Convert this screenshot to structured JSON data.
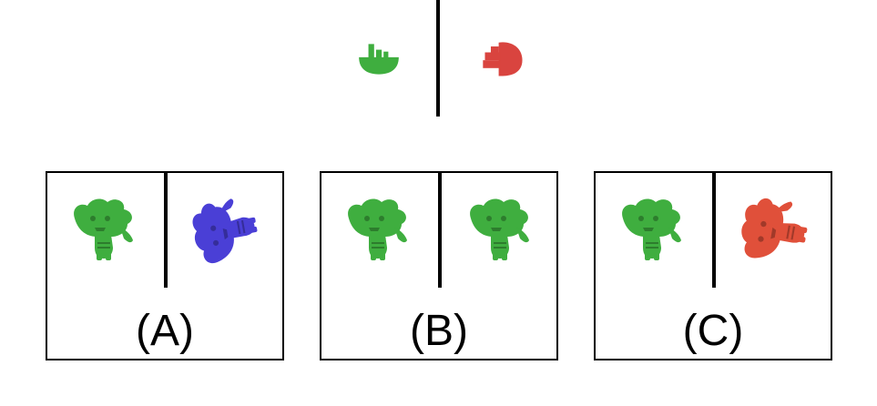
{
  "prompt": {
    "left_object_color": "#3fae3f",
    "right_object_color": "#d9443f"
  },
  "options": [
    {
      "label": "(A)",
      "left_color": "#3fae3f",
      "right_color": "#4a3fd6",
      "right_orientation": "rotated"
    },
    {
      "label": "(B)",
      "left_color": "#3fae3f",
      "right_color": "#3fae3f",
      "right_orientation": "same"
    },
    {
      "label": "(C)",
      "left_color": "#3fae3f",
      "right_color": "#e0503a",
      "right_orientation": "rotated"
    }
  ],
  "colors": {
    "green": "#3fae3f",
    "red": "#d9443f",
    "blue": "#4a3fd6",
    "orange_red": "#e0503a"
  }
}
